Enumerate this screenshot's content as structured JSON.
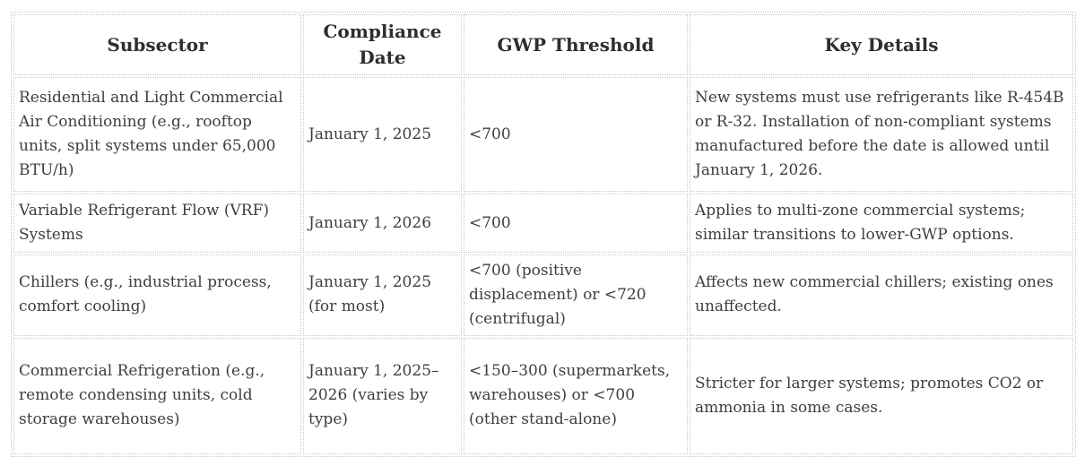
{
  "colors": {
    "background": "#ffffff",
    "border": "#c9c9c9",
    "text": "#3e3e3e",
    "header_text": "#2e2e2e"
  },
  "table": {
    "columns": [
      {
        "key": "subsector",
        "label": "Subsector"
      },
      {
        "key": "compliance_date",
        "label": "Compliance Date"
      },
      {
        "key": "gwp_threshold",
        "label": "GWP Threshold"
      },
      {
        "key": "key_details",
        "label": "Key Details"
      }
    ],
    "rows": [
      {
        "subsector": "Residential and Light Commercial Air Conditioning (e.g., rooftop units, split systems under 65,000 BTU/h)",
        "compliance_date": "January 1, 2025",
        "gwp_threshold": "<700",
        "key_details": "New systems must use refrigerants like R-454B or R-32. Installation of non-compliant systems manufactured before the date is allowed until January 1, 2026."
      },
      {
        "subsector": "Variable Refrigerant Flow (VRF) Systems",
        "compliance_date": "January 1, 2026",
        "gwp_threshold": "<700",
        "key_details": "Applies to multi-zone commercial systems; similar transitions to lower-GWP options."
      },
      {
        "subsector": "Chillers (e.g., industrial process, comfort cooling)",
        "compliance_date": "January 1, 2025 (for most)",
        "gwp_threshold": "<700 (positive displacement) or <720 (centrifugal)",
        "key_details": "Affects new commercial chillers; existing ones unaffected."
      },
      {
        "subsector": "Commercial Refrigeration (e.g., remote condensing units, cold storage warehouses)",
        "compliance_date": "January 1, 2025–2026 (varies by type)",
        "gwp_threshold": "<150–300 (supermarkets, warehouses) or <700 (other stand-alone)",
        "key_details": "Stricter for larger systems; promotes CO2 or ammonia in some cases."
      }
    ]
  }
}
